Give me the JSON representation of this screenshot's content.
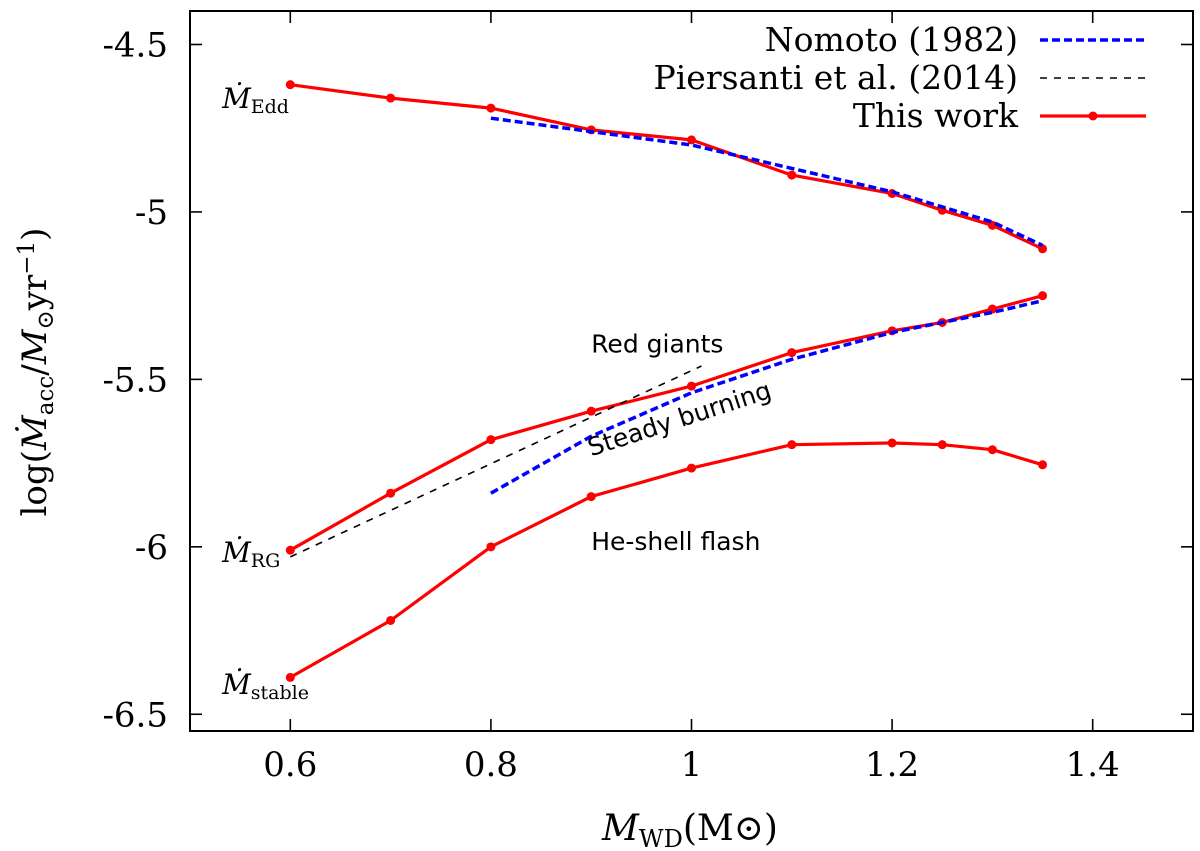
{
  "chart_data": {
    "type": "line",
    "title": "",
    "xlabel": "M_WD(M_⊙)",
    "ylabel": "log(Ṁ_acc/M_⊙yr⁻¹)",
    "xlim": [
      0.5,
      1.5
    ],
    "ylim": [
      -6.55,
      -4.4
    ],
    "x_ticks": [
      {
        "value": 0.6,
        "label": "0.6"
      },
      {
        "value": 0.8,
        "label": "0.8"
      },
      {
        "value": 1.0,
        "label": "1"
      },
      {
        "value": 1.2,
        "label": "1.2"
      },
      {
        "value": 1.4,
        "label": "1.4"
      }
    ],
    "y_ticks": [
      {
        "value": -4.5,
        "label": "-4.5"
      },
      {
        "value": -5.0,
        "label": "-5"
      },
      {
        "value": -5.5,
        "label": "-5.5"
      },
      {
        "value": -6.0,
        "label": "-6"
      },
      {
        "value": -6.5,
        "label": "-6.5"
      }
    ],
    "legend": {
      "position": "top-right",
      "entries": [
        {
          "label": "Nomoto (1982)",
          "color": "#0000ff",
          "style": "dashed-thick"
        },
        {
          "label": "Piersanti et al. (2014)",
          "color": "#000000",
          "style": "dashed-thin"
        },
        {
          "label": "This work",
          "color": "#ff0000",
          "style": "solid-points"
        }
      ]
    },
    "series": [
      {
        "name": "This work (Ṁ_Edd)",
        "group": "This work",
        "color": "#ff0000",
        "style": "solid-points",
        "x": [
          0.6,
          0.7,
          0.8,
          0.9,
          1.0,
          1.1,
          1.2,
          1.25,
          1.3,
          1.35
        ],
        "y": [
          -4.62,
          -4.66,
          -4.69,
          -4.755,
          -4.785,
          -4.89,
          -4.945,
          -4.995,
          -5.04,
          -5.11
        ]
      },
      {
        "name": "This work (Ṁ_RG)",
        "group": "This work",
        "color": "#ff0000",
        "style": "solid-points",
        "x": [
          0.6,
          0.7,
          0.8,
          0.9,
          1.0,
          1.1,
          1.2,
          1.25,
          1.3,
          1.35
        ],
        "y": [
          -6.01,
          -5.84,
          -5.68,
          -5.595,
          -5.52,
          -5.42,
          -5.355,
          -5.33,
          -5.29,
          -5.25
        ]
      },
      {
        "name": "This work (Ṁ_stable)",
        "group": "This work",
        "color": "#ff0000",
        "style": "solid-points",
        "x": [
          0.6,
          0.7,
          0.8,
          0.9,
          1.0,
          1.1,
          1.2,
          1.25,
          1.3,
          1.35
        ],
        "y": [
          -6.39,
          -6.22,
          -6.0,
          -5.85,
          -5.765,
          -5.695,
          -5.69,
          -5.695,
          -5.71,
          -5.755
        ]
      },
      {
        "name": "Nomoto (1982) upper",
        "group": "Nomoto (1982)",
        "color": "#0000ff",
        "style": "dashed-thick",
        "x": [
          0.8,
          0.9,
          1.0,
          1.1,
          1.2,
          1.3,
          1.35
        ],
        "y": [
          -4.72,
          -4.76,
          -4.8,
          -4.87,
          -4.94,
          -5.03,
          -5.1
        ]
      },
      {
        "name": "Nomoto (1982) lower",
        "group": "Nomoto (1982)",
        "color": "#0000ff",
        "style": "dashed-thick",
        "x": [
          0.8,
          0.9,
          1.0,
          1.1,
          1.2,
          1.3,
          1.35
        ],
        "y": [
          -5.84,
          -5.67,
          -5.54,
          -5.44,
          -5.36,
          -5.3,
          -5.265
        ]
      },
      {
        "name": "Piersanti et al. (2014)",
        "group": "Piersanti et al. (2014)",
        "color": "#000000",
        "style": "dashed-thin",
        "x": [
          0.6,
          1.01
        ],
        "y": [
          -6.03,
          -5.46
        ]
      }
    ],
    "curve_labels": [
      {
        "id": "edd",
        "main": "Ṁ",
        "sub": "Edd",
        "x": 0.532,
        "y": -4.66
      },
      {
        "id": "rg",
        "main": "Ṁ",
        "sub": "RG",
        "x": 0.532,
        "y": -6.015
      },
      {
        "id": "stable",
        "main": "Ṁ",
        "sub": "stable",
        "x": 0.532,
        "y": -6.41
      }
    ],
    "annotations": [
      {
        "id": "red-giants",
        "text": "Red giants",
        "x": 0.9,
        "y": -5.42,
        "rotate": 0
      },
      {
        "id": "steady-burning",
        "text": "Steady burning",
        "x": 0.9,
        "y": -5.73,
        "rotate": -18
      },
      {
        "id": "he-shell-flash",
        "text": "He-shell flash",
        "x": 0.9,
        "y": -6.01,
        "rotate": 0
      }
    ]
  }
}
